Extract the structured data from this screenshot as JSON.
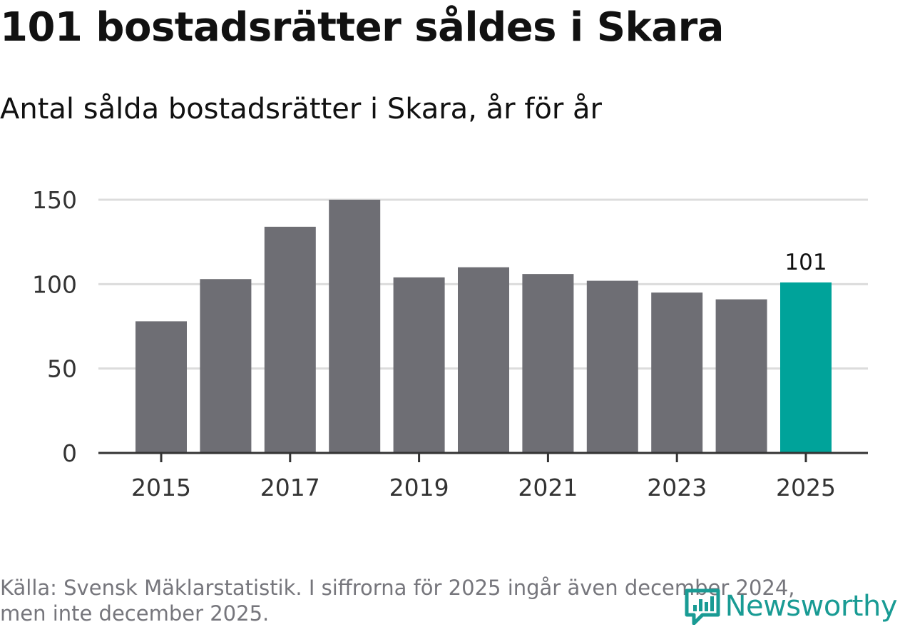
{
  "header": {
    "title": "101 bostadsrätter såldes i Skara",
    "subtitle": "Antal sålda bostadsrätter i Skara, år för år"
  },
  "chart_data": {
    "type": "bar",
    "title": "101 bostadsrätter såldes i Skara",
    "subtitle": "Antal sålda bostadsrätter i Skara, år för år",
    "xlabel": "",
    "ylabel": "",
    "categories": [
      "2015",
      "2016",
      "2017",
      "2018",
      "2019",
      "2020",
      "2021",
      "2022",
      "2023",
      "2024",
      "2025"
    ],
    "values": [
      78,
      103,
      134,
      150,
      104,
      110,
      106,
      102,
      95,
      91,
      101
    ],
    "x_tick_labels": [
      "2015",
      "2017",
      "2019",
      "2021",
      "2023",
      "2025"
    ],
    "y_ticks": [
      0,
      50,
      100,
      150
    ],
    "ylim": [
      0,
      150
    ],
    "grid": true,
    "highlight": {
      "category": "2025",
      "label": "101"
    },
    "colors": {
      "bar": "#6e6e74",
      "highlight": "#00a39a",
      "grid": "#dcdcdc",
      "axis": "#333333",
      "tick_text": "#333333"
    }
  },
  "footer": {
    "source_line1": "Källa: Svensk Mäklarstatistik. I siffrorna för 2025 ingår även december 2024,",
    "source_line2": "men inte december 2025."
  },
  "brand": {
    "logo_icon": "newsworthy-chat-bars-icon",
    "name": "Newsworthy",
    "color": "#199b94"
  }
}
